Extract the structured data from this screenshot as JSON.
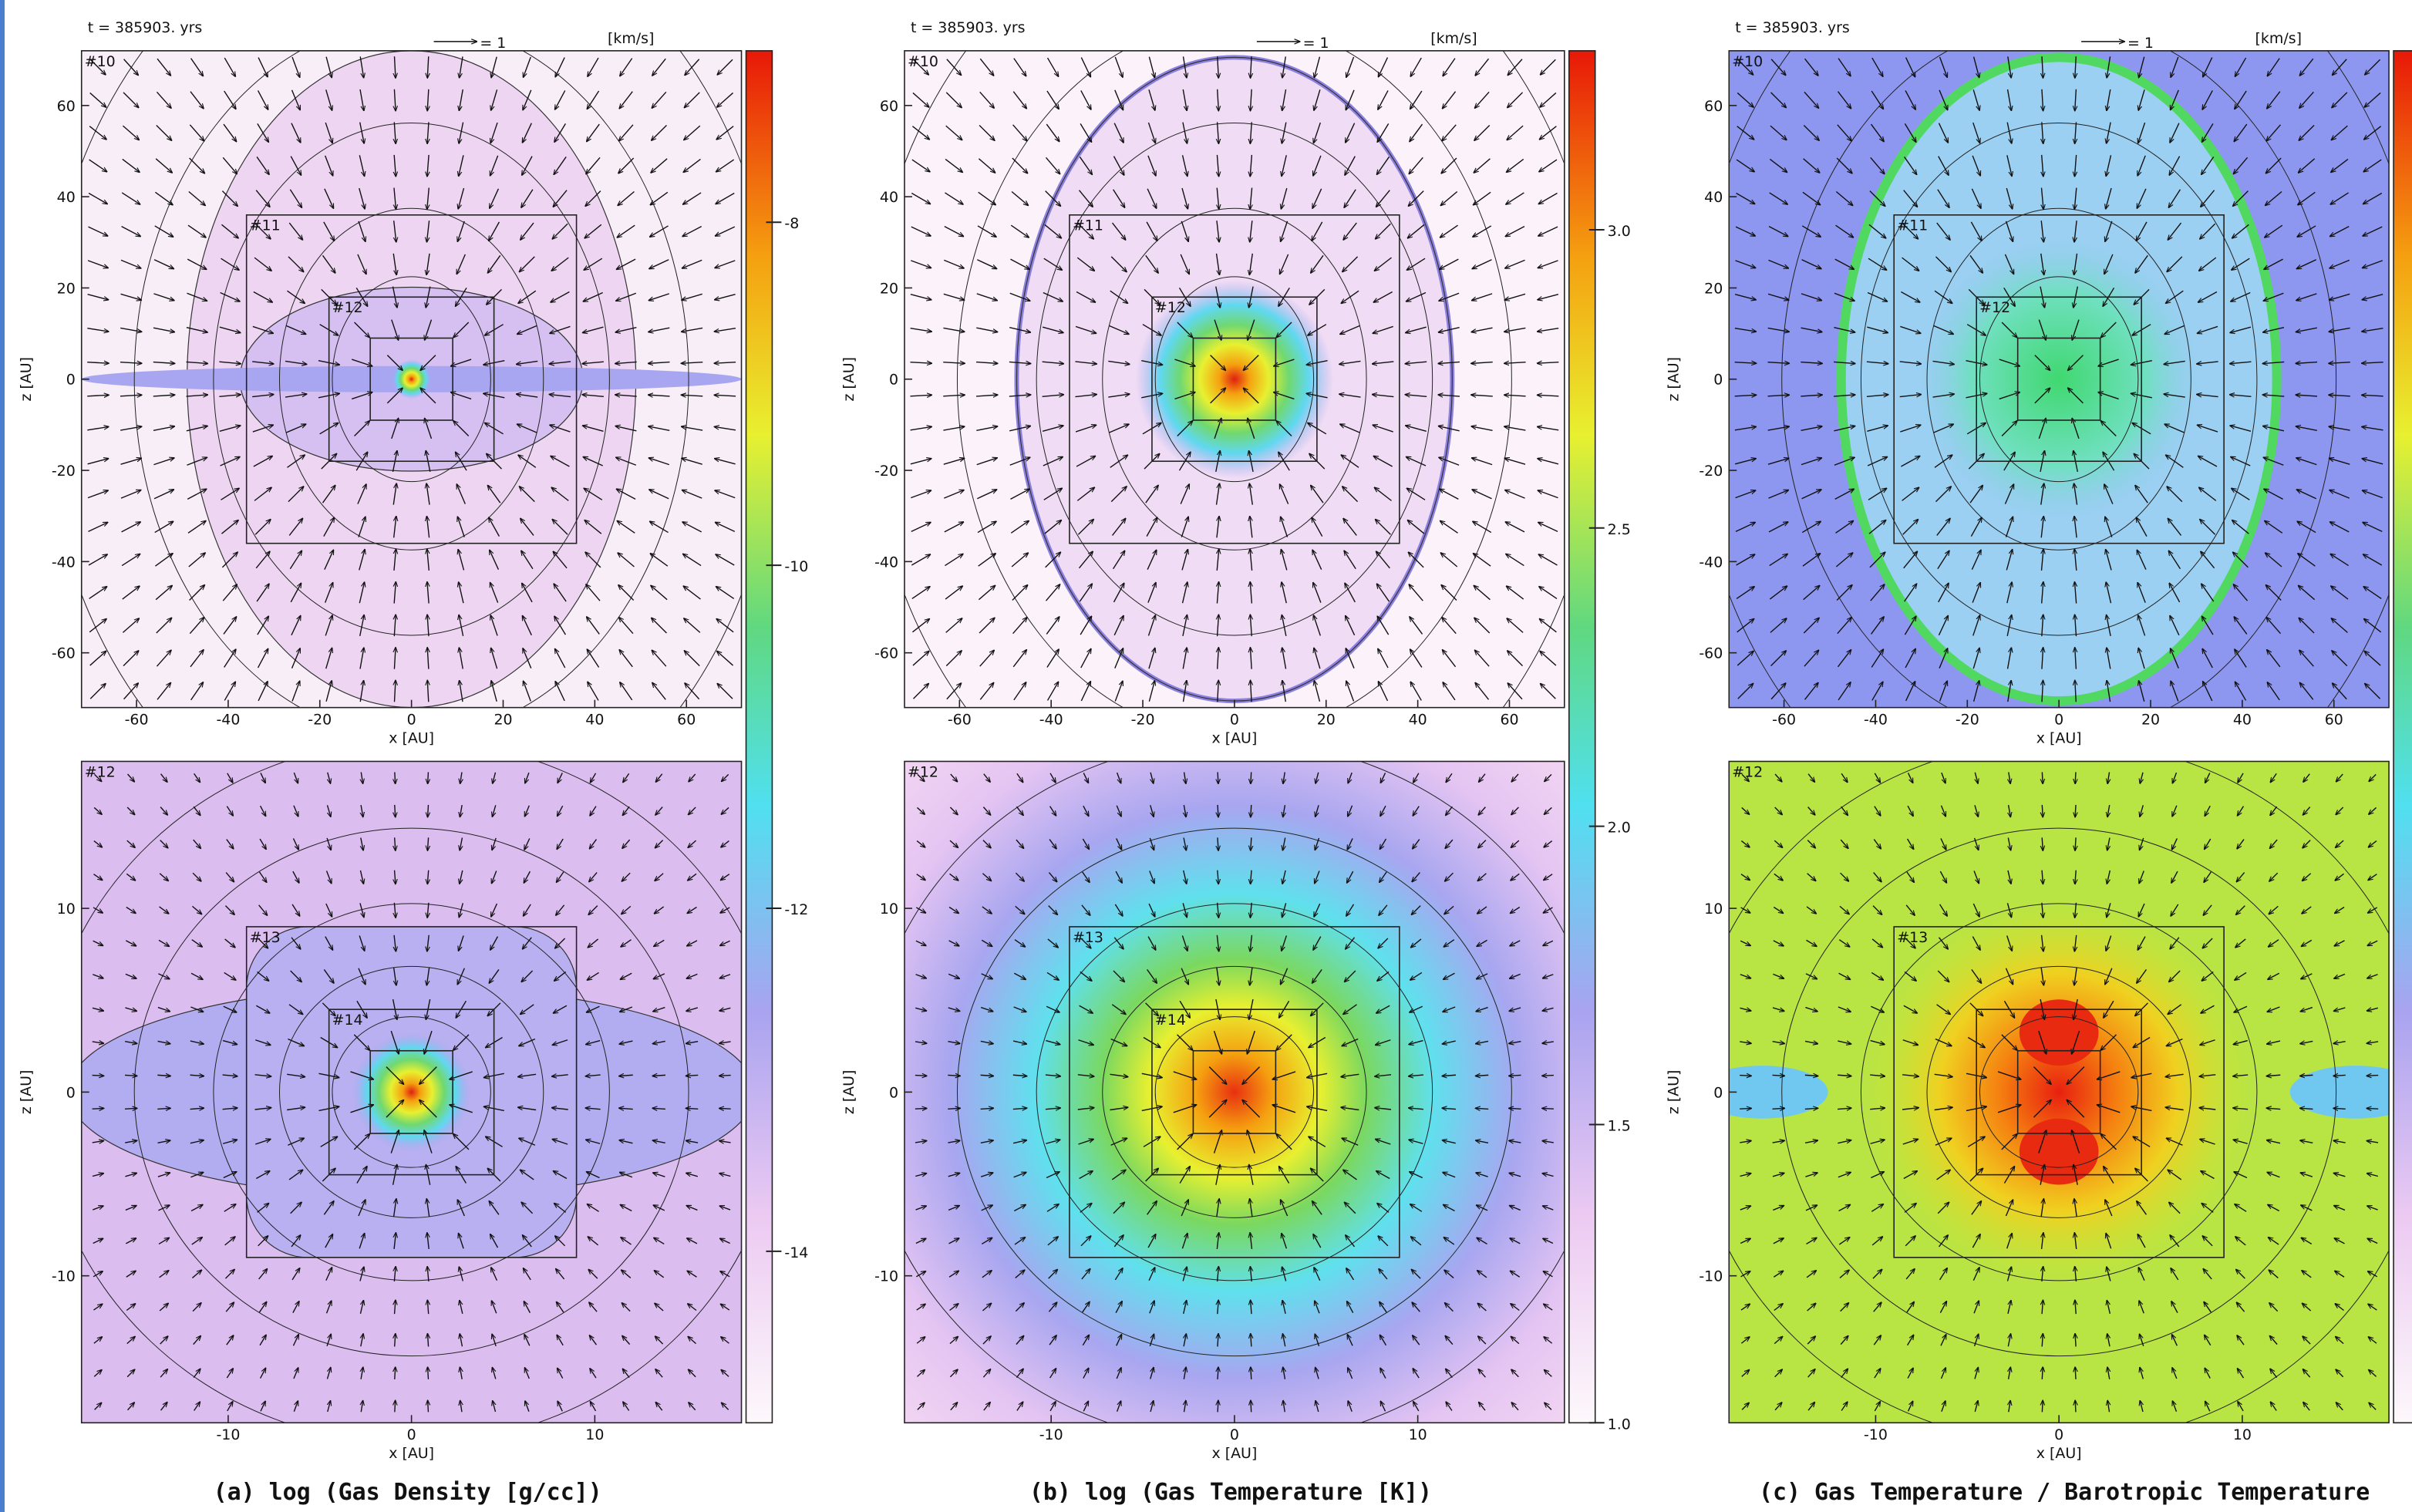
{
  "chart_data": [
    {
      "type": "heatmap",
      "caption": "(a)   log (Gas Density [g/cc])",
      "colorbar": {
        "lim": [
          -15,
          -7
        ],
        "ticks": [
          -8,
          -10,
          -12,
          -14
        ]
      },
      "plots": [
        {
          "time": "t = 385903. yrs",
          "vector_label": "= 1",
          "vector_unit": "[km/s]",
          "levels": [
            "#10",
            "#11",
            "#12"
          ],
          "xlim": [
            -72,
            72
          ],
          "ylim": [
            -72,
            72
          ],
          "xticks": [
            -60,
            -40,
            -20,
            0,
            20,
            40,
            60
          ],
          "yticks": [
            -60,
            -40,
            -20,
            0,
            20,
            40,
            60
          ],
          "xlabel": "x [AU]",
          "ylabel": "z [AU]"
        },
        {
          "levels": [
            "#12",
            "#13",
            "#14"
          ],
          "xlim": [
            -18,
            18
          ],
          "ylim": [
            -18,
            18
          ],
          "xticks": [
            -10,
            0,
            10
          ],
          "yticks": [
            -10,
            0,
            10
          ],
          "xlabel": "x [AU]",
          "ylabel": "z [AU]"
        }
      ]
    },
    {
      "type": "heatmap",
      "caption": "(b)  log (Gas Temperature [K])",
      "colorbar": {
        "lim": [
          1.0,
          3.3
        ],
        "ticks": [
          {
            "value": 1,
            "label": "1.0"
          },
          1.5,
          {
            "value": 2,
            "label": "2.0"
          },
          2.5,
          {
            "value": 3,
            "label": "3.0"
          }
        ]
      },
      "plots": [
        {
          "time": "t = 385903. yrs",
          "vector_label": "= 1",
          "vector_unit": "[km/s]",
          "levels": [
            "#10",
            "#11",
            "#12"
          ],
          "xlim": [
            -72,
            72
          ],
          "ylim": [
            -72,
            72
          ],
          "xticks": [
            -60,
            -40,
            -20,
            0,
            20,
            40,
            60
          ],
          "yticks": [
            -60,
            -40,
            -20,
            0,
            20,
            40,
            60
          ],
          "xlabel": "x [AU]",
          "ylabel": "z [AU]"
        },
        {
          "levels": [
            "#12",
            "#13",
            "#14"
          ],
          "xlim": [
            -18,
            18
          ],
          "ylim": [
            -18,
            18
          ],
          "xticks": [
            -10,
            0,
            10
          ],
          "yticks": [
            -10,
            0,
            10
          ],
          "xlabel": "x [AU]",
          "ylabel": "z [AU]"
        }
      ]
    },
    {
      "type": "heatmap",
      "caption": "(c) Gas Temperature / Barotropic Temperature",
      "plots": [
        {
          "time": "t = 385903. yrs",
          "vector_label": "= 1",
          "vector_unit": "[km/s]",
          "levels": [
            "#10",
            "#11",
            "#12"
          ],
          "xlim": [
            -72,
            72
          ],
          "ylim": [
            -72,
            72
          ],
          "xticks": [
            -60,
            -40,
            -20,
            0,
            20,
            40,
            60
          ],
          "yticks": [
            -60,
            -40,
            -20,
            0,
            20,
            40,
            60
          ],
          "xlabel": "x [AU]",
          "ylabel": "z [AU]"
        },
        {
          "levels": [
            "#12",
            "#13"
          ],
          "xlim": [
            -18,
            18
          ],
          "ylim": [
            -18,
            18
          ],
          "xticks": [
            -10,
            0,
            10
          ],
          "yticks": [
            -10,
            0,
            10
          ],
          "xlabel": "x [AU]",
          "ylabel": "z [AU]"
        }
      ]
    }
  ]
}
